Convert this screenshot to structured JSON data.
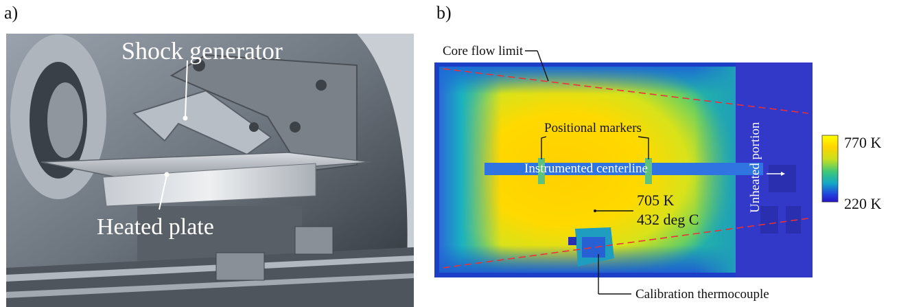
{
  "panel_a": {
    "letter": "a)",
    "labels": {
      "shock_generator": "Shock generator",
      "heated_plate": "Heated plate"
    }
  },
  "panel_b": {
    "letter": "b)",
    "annotations": {
      "core_flow_limit": "Core flow limit",
      "positional_markers": "Positional markers",
      "instrumented_centerline": "Instrumented centerline",
      "unheated_portion": "Unheated portion",
      "temp_kelvin": "705 K",
      "temp_celsius": "432 deg C",
      "calibration_thermocouple": "Calibration thermocouple"
    },
    "colorbar": {
      "max_label": "770 K",
      "min_label": "220 K",
      "colors": [
        "#ffff00",
        "#ffd400",
        "#c8e01e",
        "#3cc878",
        "#14a8c8",
        "#1e46dc",
        "#2814c8"
      ]
    }
  }
}
